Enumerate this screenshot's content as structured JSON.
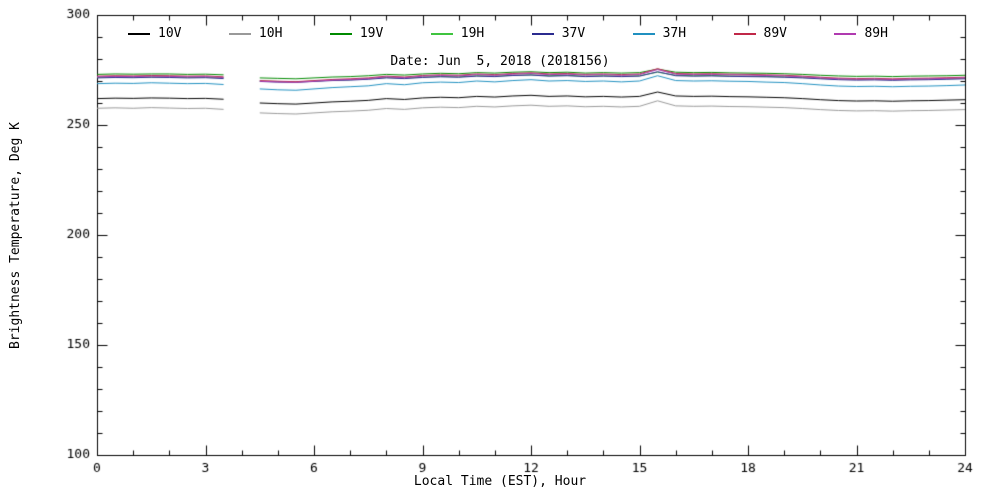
{
  "chart_data": {
    "type": "line",
    "annotation": "Date: Jun  5, 2018 (2018156)",
    "xlabel": "Local Time (EST), Hour",
    "ylabel": "Brightness Temperature, Deg K",
    "xlim": [
      0,
      24
    ],
    "ylim": [
      100,
      300
    ],
    "xticks": [
      0,
      3,
      6,
      9,
      12,
      15,
      18,
      21,
      24
    ],
    "yticks": [
      100,
      150,
      200,
      250,
      300
    ],
    "xminor_step": 1,
    "yminor_step": 10,
    "grid": false,
    "legend_position": "top-inside",
    "axis_color": "#000000",
    "x": [
      0,
      0.5,
      1,
      1.5,
      2,
      2.5,
      3,
      3.5,
      4,
      4.5,
      5,
      5.5,
      6,
      6.5,
      7,
      7.5,
      8,
      8.5,
      9,
      9.5,
      10,
      10.5,
      11,
      11.5,
      12,
      12.5,
      13,
      13.5,
      14,
      14.5,
      15,
      15.5,
      16,
      16.5,
      17,
      17.5,
      18,
      18.5,
      19,
      19.5,
      20,
      20.5,
      21,
      21.5,
      22,
      22.5,
      23,
      23.5,
      24
    ],
    "series": [
      {
        "name": "10V",
        "color": "#000000",
        "values": [
          262,
          262.2,
          262.1,
          262.3,
          262.2,
          262,
          262.1,
          261.7,
          null,
          260,
          259.7,
          259.5,
          260,
          260.5,
          260.8,
          261.2,
          262,
          261.6,
          262.3,
          262.6,
          262.4,
          263,
          262.7,
          263.2,
          263.5,
          263,
          263.2,
          262.8,
          263,
          262.7,
          263,
          265,
          263.2,
          263,
          263.1,
          262.9,
          262.8,
          262.6,
          262.4,
          262,
          261.5,
          261.1,
          260.9,
          261,
          260.8,
          261,
          261.1,
          261.3,
          261.5
        ]
      },
      {
        "name": "10H",
        "color": "#999999",
        "values": [
          257.6,
          257.8,
          257.6,
          257.9,
          257.7,
          257.5,
          257.6,
          257.1,
          null,
          255.5,
          255.2,
          255,
          255.5,
          256,
          256.3,
          256.7,
          257.5,
          257.1,
          257.8,
          258.1,
          257.9,
          258.5,
          258.2,
          258.7,
          259,
          258.5,
          258.7,
          258.3,
          258.5,
          258.2,
          258.5,
          261,
          258.7,
          258.5,
          258.6,
          258.4,
          258.3,
          258.1,
          257.9,
          257.5,
          257,
          256.6,
          256.4,
          256.5,
          256.3,
          256.5,
          256.6,
          256.8,
          257
        ]
      },
      {
        "name": "19V",
        "color": "#008a00",
        "values": [
          273,
          273.2,
          273.1,
          273.2,
          273.2,
          273,
          273.1,
          272.8,
          null,
          271.4,
          271.2,
          271,
          271.4,
          271.8,
          272,
          272.4,
          273,
          272.7,
          273.2,
          273.5,
          273.3,
          273.8,
          273.6,
          274,
          274.2,
          273.8,
          274,
          273.6,
          273.8,
          273.6,
          273.8,
          275.4,
          274,
          273.8,
          273.9,
          273.7,
          273.6,
          273.5,
          273.3,
          273,
          272.6,
          272.3,
          272.1,
          272.2,
          272,
          272.2,
          272.3,
          272.4,
          272.6
        ]
      },
      {
        "name": "19H",
        "color": "#3fc43f",
        "values": [
          271.6,
          271.8,
          271.7,
          271.8,
          271.8,
          271.6,
          271.7,
          271.4,
          null,
          270,
          269.8,
          269.6,
          270,
          270.4,
          270.6,
          271,
          271.6,
          271.3,
          271.8,
          272.1,
          271.9,
          272.4,
          272.2,
          272.6,
          272.8,
          272.4,
          272.6,
          272.2,
          272.4,
          272.2,
          272.4,
          274,
          272.6,
          272.4,
          272.5,
          272.3,
          272.2,
          272.1,
          271.9,
          271.6,
          271.2,
          270.9,
          270.7,
          270.8,
          270.6,
          270.8,
          270.9,
          271,
          271.2
        ]
      },
      {
        "name": "37V",
        "color": "#2b2b8f",
        "values": [
          271.4,
          271.6,
          271.5,
          271.7,
          271.6,
          271.4,
          271.5,
          271.1,
          null,
          269.8,
          269.5,
          269.4,
          269.8,
          270.2,
          270.4,
          270.8,
          271.4,
          271.1,
          271.6,
          271.9,
          271.7,
          272.2,
          272,
          272.5,
          272.7,
          272.2,
          272.4,
          272,
          272.2,
          272,
          272.2,
          274.2,
          272.4,
          272.2,
          272.3,
          272.1,
          272,
          271.9,
          271.7,
          271.4,
          271,
          270.6,
          270.4,
          270.5,
          270.3,
          270.5,
          270.6,
          270.8,
          271
        ]
      },
      {
        "name": "37H",
        "color": "#2090c0",
        "values": [
          268.8,
          269,
          268.9,
          269.2,
          269,
          268.8,
          268.9,
          268.4,
          null,
          266.4,
          266,
          265.8,
          266.4,
          267,
          267.4,
          267.8,
          268.8,
          268.3,
          269.2,
          269.5,
          269.3,
          270,
          269.6,
          270.2,
          270.6,
          270,
          270.2,
          269.8,
          270,
          269.6,
          270,
          272.4,
          270.2,
          270,
          270.1,
          269.9,
          269.8,
          269.5,
          269.3,
          268.8,
          268.2,
          267.7,
          267.5,
          267.6,
          267.4,
          267.6,
          267.7,
          267.9,
          268.2
        ]
      },
      {
        "name": "89V",
        "color": "#c02848",
        "values": [
          272.2,
          272.4,
          272.3,
          272.5,
          272.4,
          272.2,
          272.3,
          271.9,
          null,
          270.2,
          269.9,
          269.7,
          270.2,
          270.7,
          271,
          271.4,
          272.2,
          271.8,
          272.5,
          272.8,
          272.6,
          273.2,
          272.9,
          273.4,
          273.7,
          273.2,
          273.4,
          273,
          273.2,
          272.9,
          273.2,
          275.6,
          273.4,
          273.2,
          273.3,
          273.1,
          273,
          272.8,
          272.6,
          272.2,
          271.7,
          271.3,
          271.1,
          271.2,
          271,
          271.2,
          271.3,
          271.5,
          271.7
        ]
      },
      {
        "name": "89H",
        "color": "#b03ab0",
        "values": [
          271.9,
          272.1,
          272,
          272.2,
          272.1,
          271.9,
          272,
          271.6,
          null,
          269.9,
          269.6,
          269.4,
          269.9,
          270.4,
          270.7,
          271.1,
          271.9,
          271.5,
          272.2,
          272.5,
          272.3,
          272.9,
          272.6,
          273.1,
          273.4,
          272.9,
          273.1,
          272.7,
          272.9,
          272.6,
          272.9,
          275.2,
          273.1,
          272.9,
          273,
          272.8,
          272.7,
          272.5,
          272.3,
          271.9,
          271.4,
          271,
          270.8,
          270.9,
          270.7,
          270.9,
          271,
          271.2,
          271.4
        ]
      }
    ]
  }
}
